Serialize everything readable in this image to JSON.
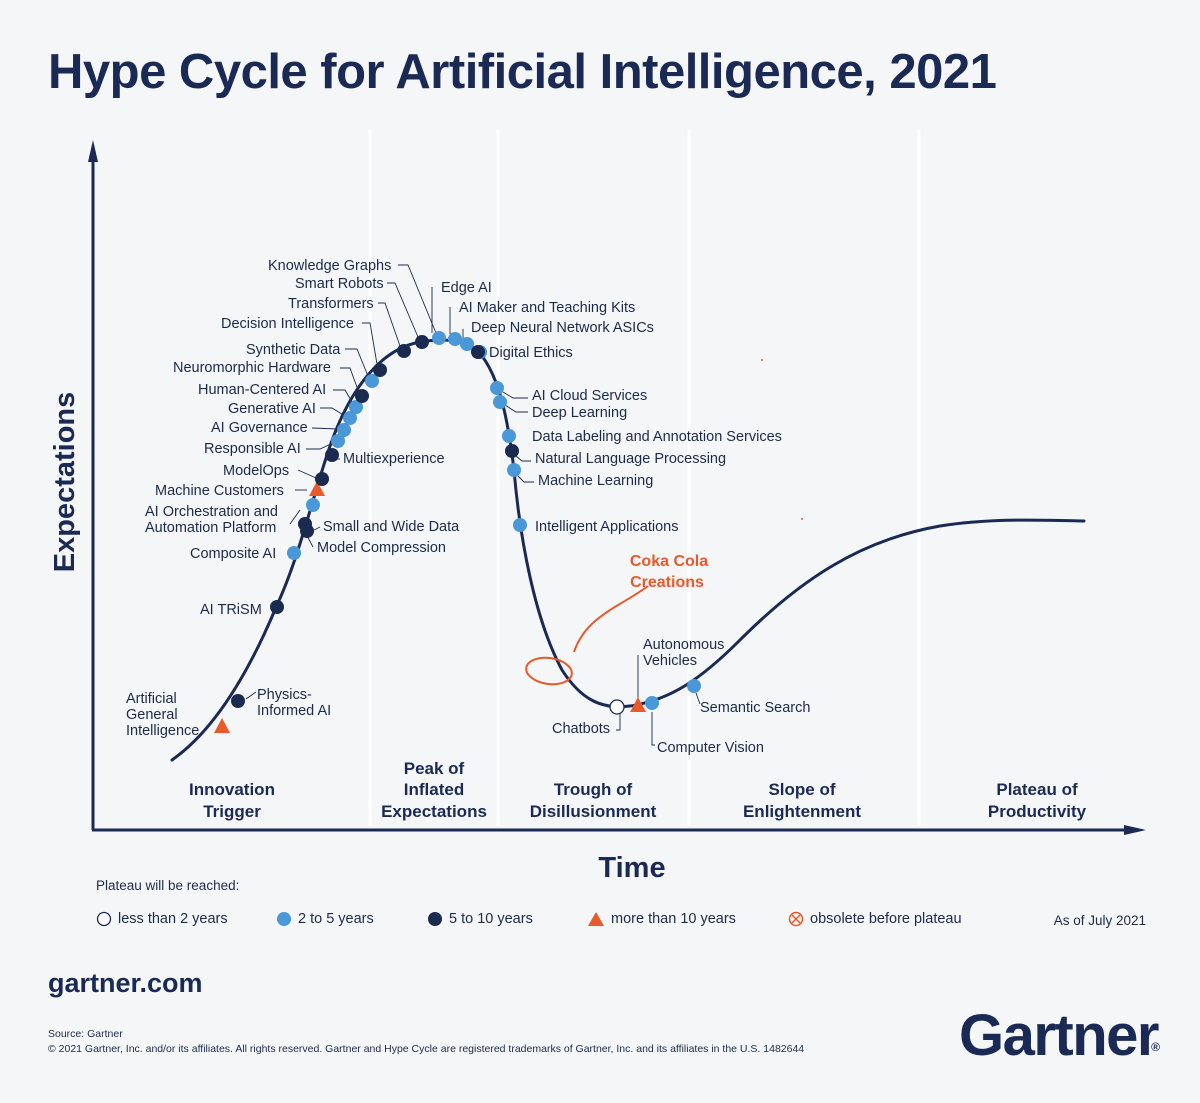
{
  "title": "Hype Cycle for Artificial Intelligence, 2021",
  "axes": {
    "y": "Expectations",
    "x": "Time"
  },
  "phases": [
    {
      "lines": [
        "Innovation",
        "Trigger"
      ]
    },
    {
      "lines": [
        "Peak of",
        "Inflated",
        "Expectations"
      ]
    },
    {
      "lines": [
        "Trough of",
        "Disillusionment"
      ]
    },
    {
      "lines": [
        "Slope of",
        "Enlightenment"
      ]
    },
    {
      "lines": [
        "Plateau of",
        "Productivity"
      ]
    }
  ],
  "technologies": [
    {
      "label": [
        "Artificial",
        "General",
        "Intelligence"
      ],
      "category": "more than 10 years"
    },
    {
      "label": [
        "Physics-",
        "Informed AI"
      ],
      "category": "5 to 10 years"
    },
    {
      "label": [
        "AI TRiSM"
      ],
      "category": "5 to 10 years"
    },
    {
      "label": [
        "Composite AI"
      ],
      "category": "2 to 5 years"
    },
    {
      "label": [
        "Model Compression"
      ],
      "category": "5 to 10 years"
    },
    {
      "label": [
        "Small and Wide Data"
      ],
      "category": "5 to 10 years"
    },
    {
      "label": [
        "AI Orchestration and",
        "Automation Platform"
      ],
      "category": "2 to 5 years"
    },
    {
      "label": [
        "Machine Customers"
      ],
      "category": "more than 10 years"
    },
    {
      "label": [
        "ModelOps"
      ],
      "category": "5 to 10 years"
    },
    {
      "label": [
        "Multiexperience"
      ],
      "category": "5 to 10 years"
    },
    {
      "label": [
        "Responsible AI"
      ],
      "category": "2 to 5 years"
    },
    {
      "label": [
        "AI Governance"
      ],
      "category": "2 to 5 years"
    },
    {
      "label": [
        "Generative AI"
      ],
      "category": "2 to 5 years"
    },
    {
      "label": [
        "Human-Centered AI"
      ],
      "category": "2 to 5 years"
    },
    {
      "label": [
        "Neuromorphic Hardware"
      ],
      "category": "5 to 10 years"
    },
    {
      "label": [
        "Synthetic Data"
      ],
      "category": "2 to 5 years"
    },
    {
      "label": [
        "Decision Intelligence"
      ],
      "category": "5 to 10 years"
    },
    {
      "label": [
        "Transformers"
      ],
      "category": "5 to 10 years"
    },
    {
      "label": [
        "Smart Robots"
      ],
      "category": "5 to 10 years"
    },
    {
      "label": [
        "Knowledge Graphs"
      ],
      "category": "2 to 5 years"
    },
    {
      "label": [
        "Edge AI"
      ],
      "category": "2 to 5 years"
    },
    {
      "label": [
        "AI Maker and Teaching Kits"
      ],
      "category": "2 to 5 years"
    },
    {
      "label": [
        "Deep Neural Network ASICs"
      ],
      "category": "2 to 5 years"
    },
    {
      "label": [
        "Digital Ethics"
      ],
      "category": "5 to 10 years"
    },
    {
      "label": [
        "AI Cloud Services"
      ],
      "category": "2 to 5 years"
    },
    {
      "label": [
        "Deep Learning"
      ],
      "category": "2 to 5 years"
    },
    {
      "label": [
        "Data Labeling and Annotation Services"
      ],
      "category": "2 to 5 years"
    },
    {
      "label": [
        "Natural Language Processing"
      ],
      "category": "5 to 10 years"
    },
    {
      "label": [
        "Machine Learning"
      ],
      "category": "2 to 5 years"
    },
    {
      "label": [
        "Intelligent Applications"
      ],
      "category": "2 to 5 years"
    },
    {
      "label": [
        "Chatbots"
      ],
      "category": "less than 2 years"
    },
    {
      "label": [
        "Autonomous",
        "Vehicles"
      ],
      "category": "more than 10 years"
    },
    {
      "label": [
        "Computer Vision"
      ],
      "category": "2 to 5 years"
    },
    {
      "label": [
        "Semantic Search"
      ],
      "category": "2 to 5 years"
    }
  ],
  "annotation": {
    "lines": [
      "Coka Cola",
      "Creations"
    ]
  },
  "legend": {
    "title": "Plateau will be reached:",
    "items": [
      {
        "label": "less than 2 years",
        "symbol": "open-circle"
      },
      {
        "label": "2 to 5 years",
        "symbol": "light-blue-circle"
      },
      {
        "label": "5 to 10 years",
        "symbol": "dark-navy-circle"
      },
      {
        "label": "more than 10 years",
        "symbol": "orange-triangle"
      },
      {
        "label": "obsolete before plateau",
        "symbol": "crossed-circle"
      }
    ],
    "as_of": "As of July 2021"
  },
  "footer": {
    "site": "gartner.com",
    "source": "Source: Gartner",
    "copyright": "© 2021 Gartner, Inc. and/or its affiliates. All rights reserved. Gartner and Hype Cycle are registered trademarks of Gartner, Inc. and its affiliates in the U.S. 1482644",
    "logo": "Gartner"
  },
  "colors": {
    "navy": "#1a2a55",
    "light_blue": "#4a98d8",
    "dark_dot": "#1b2b50",
    "orange": "#e85a2a"
  }
}
